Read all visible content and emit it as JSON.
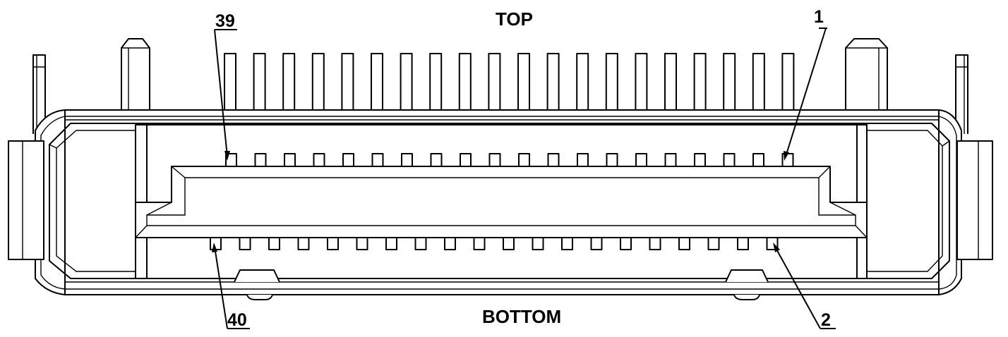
{
  "labels": {
    "top": "TOP",
    "bottom": "BOTTOM",
    "pin_top_right": "1",
    "pin_top_left": "39",
    "pin_bottom_left": "40",
    "pin_bottom_right": "2"
  },
  "connector": {
    "top_row_pins": 20,
    "bottom_row_pins": 20
  },
  "colors": {
    "line": "#000000",
    "background": "#ffffff"
  }
}
